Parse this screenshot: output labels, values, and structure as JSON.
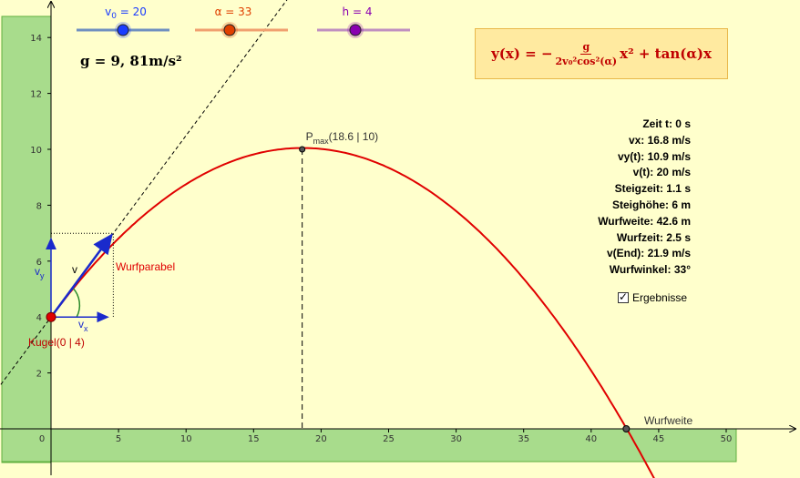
{
  "sliders": [
    {
      "label_main": "v",
      "label_sub": "0",
      "label_rest": " = 20",
      "color": "#1a3cff",
      "track": "#7090c0"
    },
    {
      "label_main": "α",
      "label_sub": "",
      "label_rest": " = 33",
      "color": "#e04000",
      "track": "#f0a070"
    },
    {
      "label_main": "h",
      "label_sub": "",
      "label_rest": " = 4",
      "color": "#8a00b0",
      "track": "#c090c0"
    }
  ],
  "gravity": "g = 9, 81m/s²",
  "formula": {
    "lhs": "y(x) = −",
    "numerator": "g",
    "denominator": "2v₀²cos²(α)",
    "rhs": "x² + tan(α)x"
  },
  "results": [
    "Zeit t: 0 s",
    "vx: 16.8 m/s",
    "vy(t): 10.9 m/s",
    "v(t): 20 m/s",
    "Steigzeit: 1.1 s",
    "Steighöhe: 6 m",
    "Wurfweite: 42.6 m",
    "Wurfzeit: 2.5 s",
    "v(End): 21.9 m/s",
    "Wurfwinkel: 33°"
  ],
  "checkbox": {
    "label": "Ergebnisse",
    "checked": true
  },
  "labels": {
    "pmax_main": "P",
    "pmax_sub": "max",
    "pmax_coords": "(18.6 | 10)",
    "wurfparabel": "Wurfparabel",
    "kugel": "Kugel(0 | 4)",
    "wurfweite": "Wurfweite",
    "v": "v",
    "vx_main": "v",
    "vx_sub": "x",
    "vy_main": "v",
    "vy_sub": "y"
  },
  "axes": {
    "x_ticks": [
      "0",
      "5",
      "10",
      "15",
      "20",
      "25",
      "30",
      "35",
      "40",
      "45",
      "50"
    ],
    "y_ticks": [
      "2",
      "4",
      "6",
      "8",
      "10",
      "12",
      "14"
    ]
  },
  "physics": {
    "v0": 20,
    "alpha_deg": 33,
    "h": 4,
    "x_max": 18.6,
    "y_max": 10,
    "range": 42.6
  },
  "colors": {
    "background": "#ffffcc",
    "parabola": "#e00000",
    "green_fill": "#a8dc8c",
    "axis": "#000000"
  }
}
